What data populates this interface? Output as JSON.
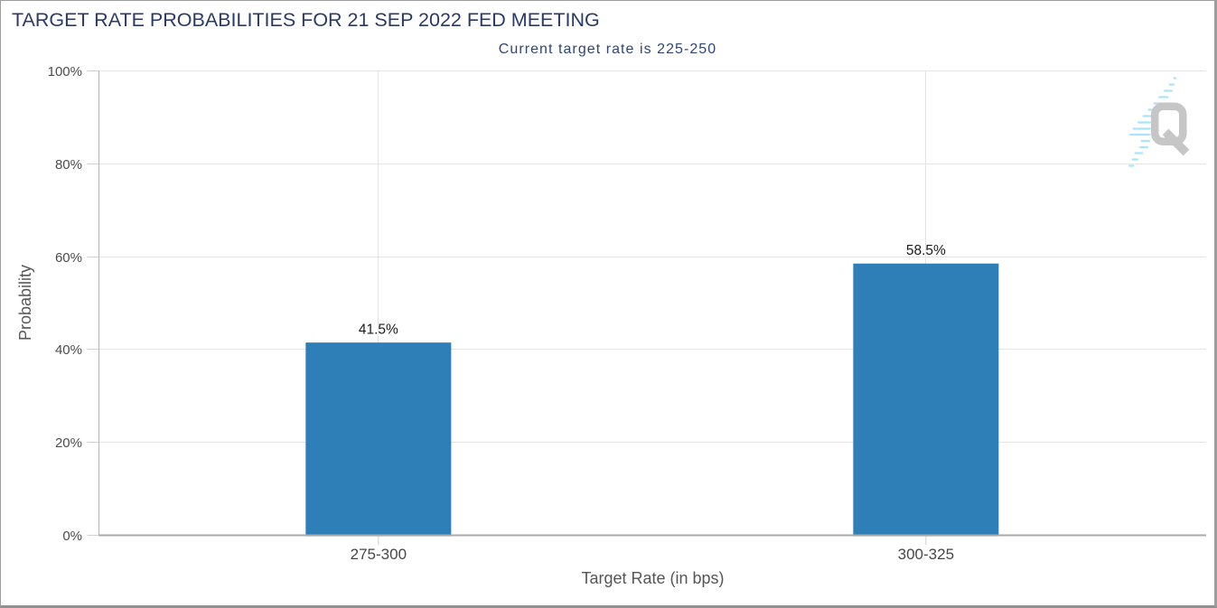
{
  "window": {
    "background": "#ffffff",
    "border_color": "#9c9c9c"
  },
  "header": {
    "title": "TARGET RATE PROBABILITIES FOR 21 SEP 2022 FED MEETING",
    "title_color": "#293a69",
    "subtitle": "Current target rate is 225-250",
    "subtitle_color": "#2f4677"
  },
  "watermark": {
    "icon": "quikstrike-q-logo-watermark",
    "q_color": "#c6c6c6",
    "flash_color": "#aae3fa"
  },
  "chart_data": {
    "type": "bar",
    "title": "TARGET RATE PROBABILITIES FOR 21 SEP 2022 FED MEETING",
    "subtitle": "Current target rate is 225-250",
    "categories": [
      "275-300",
      "300-325"
    ],
    "values": [
      41.5,
      58.5
    ],
    "value_labels": [
      "41.5%",
      "58.5%"
    ],
    "xlabel": "Target Rate (in bps)",
    "ylabel": "Probability",
    "ylim": [
      0,
      100
    ],
    "y_ticks": [
      0,
      20,
      40,
      60,
      80,
      100
    ],
    "y_tick_labels": [
      "0%",
      "20%",
      "40%",
      "60%",
      "80%",
      "100%"
    ],
    "grid": true,
    "legend": false,
    "bar_color": "#2e7eb8",
    "colors": {
      "grid_line": "#e4e4e4",
      "tick_line": "#d0d0d0",
      "y_axis_line": "#b5b5b5",
      "x_axis_line": "#aaaaaa",
      "value_label": "#1b1b1b",
      "category_label": "#474747",
      "y_tick_label": "#4c4c4c",
      "axis_title": "#565656"
    }
  }
}
